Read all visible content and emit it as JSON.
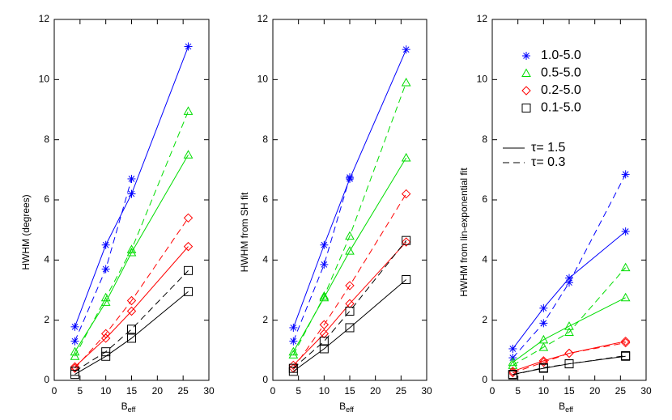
{
  "chart_data": [
    {
      "type": "line",
      "ylabel": "HWHM (degrees)",
      "xlabel": "B",
      "xlabel_sub": "eff",
      "x": [
        4,
        10,
        15,
        26
      ],
      "xlim": [
        0,
        30
      ],
      "xticks": [
        0,
        5,
        10,
        15,
        20,
        25,
        30
      ],
      "ylim": [
        0,
        12
      ],
      "yticks": [
        0,
        2,
        4,
        6,
        8,
        10,
        12
      ],
      "series": [
        {
          "color": "#0000ff",
          "marker": "star",
          "values": [
            1.78,
            4.5,
            6.2,
            11.1
          ],
          "values_dashed": [
            1.3,
            3.7,
            6.7,
            null
          ]
        },
        {
          "color": "#00dd00",
          "marker": "triangle",
          "values": [
            0.95,
            2.6,
            4.25,
            7.5
          ],
          "values_dashed": [
            0.8,
            2.75,
            4.35,
            8.95
          ]
        },
        {
          "color": "#ff0000",
          "marker": "diamond",
          "values": [
            0.45,
            1.4,
            2.3,
            4.45
          ],
          "values_dashed": [
            0.4,
            1.55,
            2.65,
            5.4
          ]
        },
        {
          "color": "#000000",
          "marker": "square",
          "values": [
            0.2,
            0.8,
            1.4,
            2.95
          ],
          "values_dashed": [
            0.3,
            0.95,
            1.7,
            3.65
          ]
        }
      ]
    },
    {
      "type": "line",
      "ylabel": "HWHM from SH fit",
      "xlabel": "B",
      "xlabel_sub": "eff",
      "x": [
        4,
        10,
        15,
        26
      ],
      "xlim": [
        0,
        30
      ],
      "xticks": [
        0,
        5,
        10,
        15,
        20,
        25,
        30
      ],
      "ylim": [
        0,
        12
      ],
      "yticks": [
        0,
        2,
        4,
        6,
        8,
        10,
        12
      ],
      "series": [
        {
          "color": "#0000ff",
          "marker": "star",
          "values": [
            1.75,
            4.5,
            6.7,
            11.0
          ],
          "values_dashed": [
            1.3,
            3.85,
            6.75,
            null
          ]
        },
        {
          "color": "#00dd00",
          "marker": "triangle",
          "values": [
            0.95,
            2.75,
            4.3,
            7.4
          ],
          "values_dashed": [
            0.85,
            2.8,
            4.8,
            9.9
          ]
        },
        {
          "color": "#ff0000",
          "marker": "diamond",
          "values": [
            0.5,
            1.55,
            2.55,
            4.6
          ],
          "values_dashed": [
            0.4,
            1.85,
            3.15,
            6.2
          ]
        },
        {
          "color": "#000000",
          "marker": "square",
          "values": [
            0.3,
            1.05,
            1.75,
            3.35
          ],
          "values_dashed": [
            0.4,
            1.3,
            2.3,
            4.65
          ]
        }
      ]
    },
    {
      "type": "line",
      "ylabel": "HWHM from lin-exponential fit",
      "xlabel": "B",
      "xlabel_sub": "eff",
      "x": [
        4,
        10,
        15,
        26
      ],
      "xlim": [
        0,
        30
      ],
      "xticks": [
        0,
        5,
        10,
        15,
        20,
        25,
        30
      ],
      "ylim": [
        0,
        12
      ],
      "yticks": [
        0,
        2,
        4,
        6,
        8,
        10,
        12
      ],
      "legend": true,
      "series": [
        {
          "name": "1.0-5.0",
          "color": "#0000ff",
          "marker": "star",
          "values": [
            1.05,
            2.4,
            3.4,
            4.95
          ],
          "values_dashed": [
            0.75,
            1.9,
            3.25,
            6.85
          ]
        },
        {
          "name": "0.5-5.0",
          "color": "#00dd00",
          "marker": "triangle",
          "values": [
            0.6,
            1.35,
            1.8,
            2.75
          ],
          "values_dashed": [
            0.5,
            1.1,
            1.6,
            3.75
          ]
        },
        {
          "name": "0.2-5.0",
          "color": "#ff0000",
          "marker": "diamond",
          "values": [
            0.3,
            0.65,
            0.9,
            1.3
          ],
          "values_dashed": [
            0.25,
            0.6,
            0.9,
            1.25
          ]
        },
        {
          "name": "0.1-5.0",
          "color": "#000000",
          "marker": "square",
          "values": [
            0.2,
            0.4,
            0.55,
            0.8
          ],
          "values_dashed": [
            0.18,
            0.42,
            0.55,
            0.82
          ]
        }
      ],
      "line_styles": [
        {
          "label": "τ= 1.5",
          "dash": "solid"
        },
        {
          "label": "τ= 0.3",
          "dash": "dashed"
        }
      ]
    }
  ]
}
